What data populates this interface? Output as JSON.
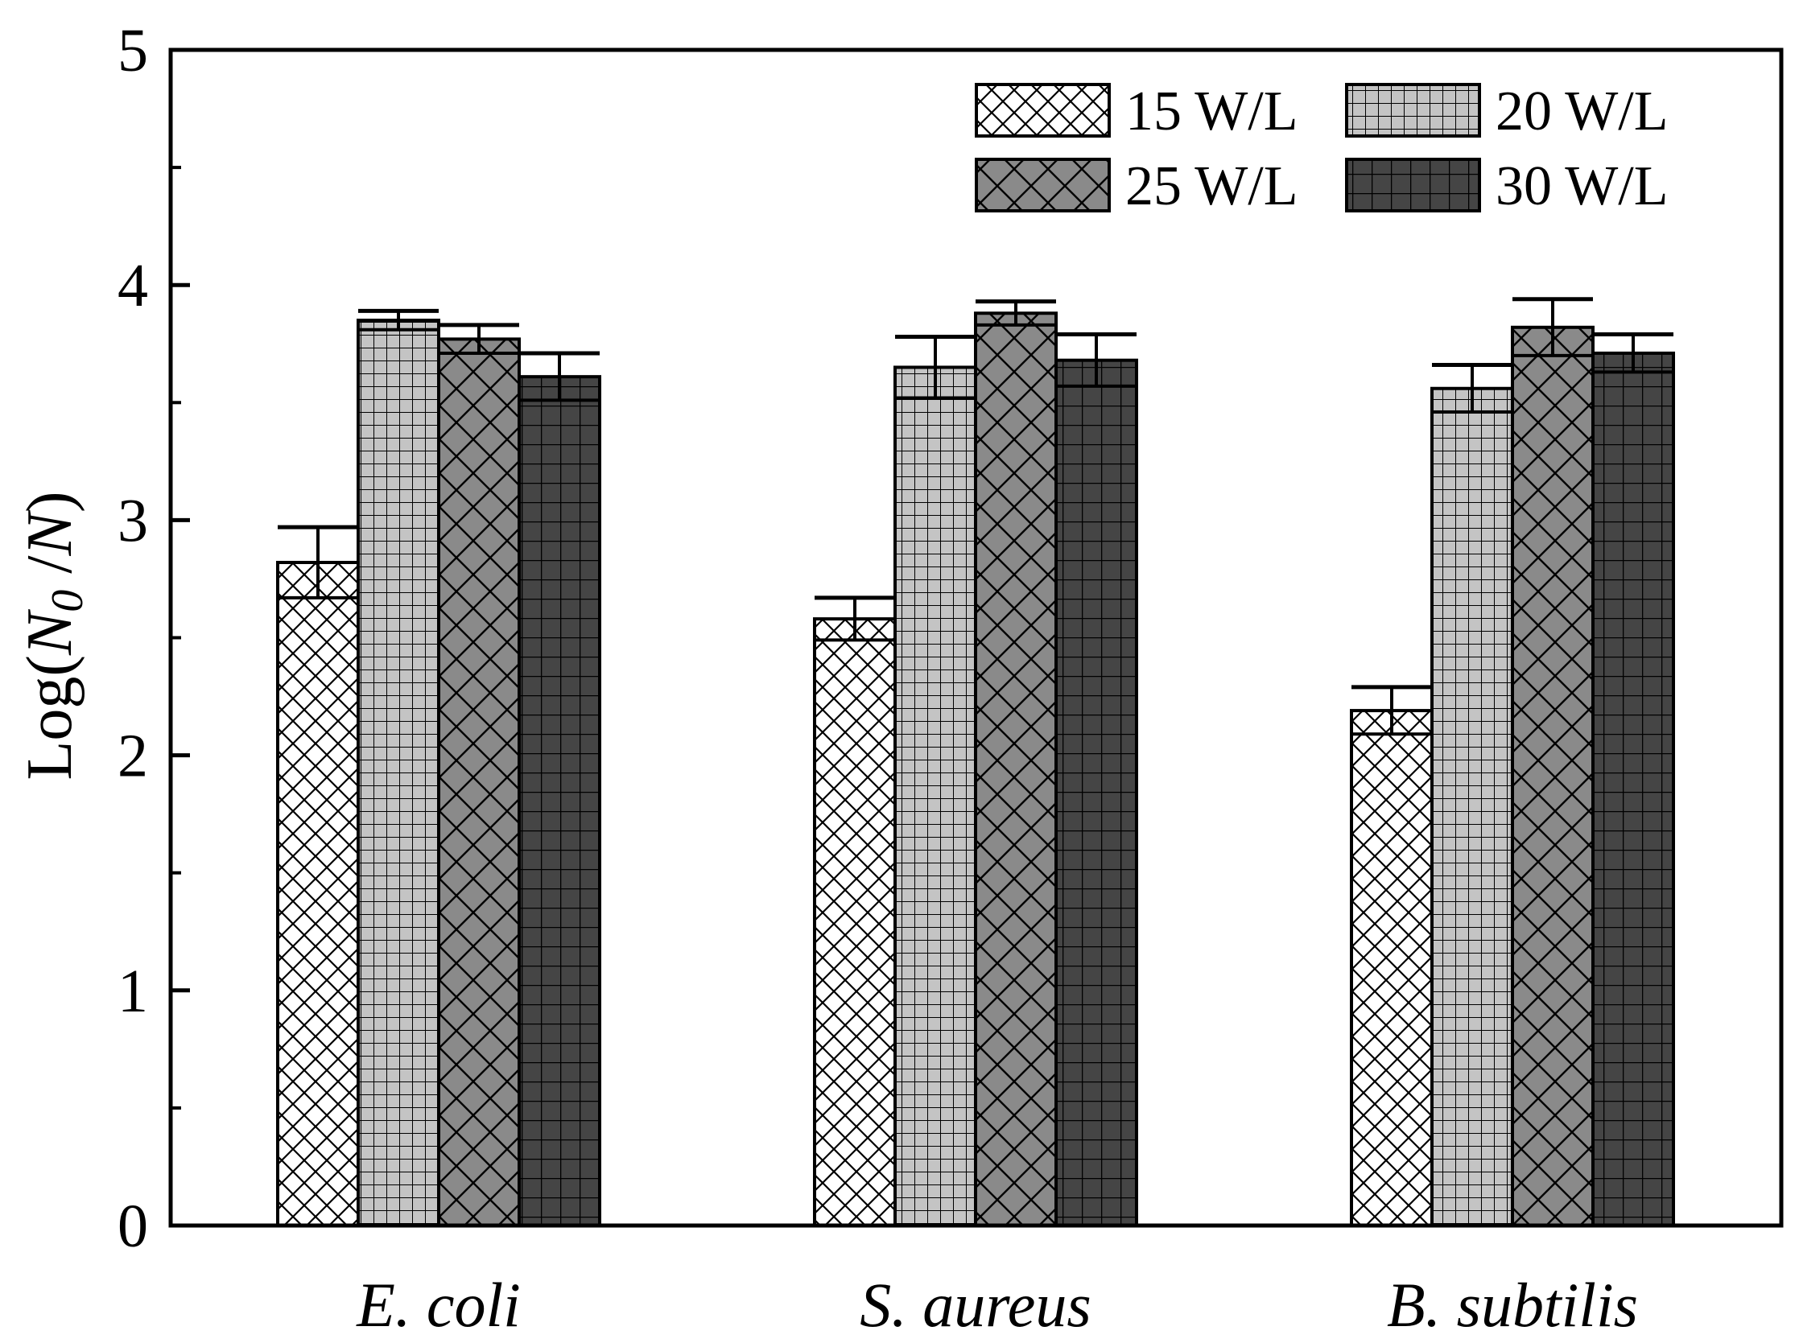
{
  "chart_data": {
    "type": "bar",
    "categories": [
      "E. coli",
      "S. aureus",
      "B. subtilis"
    ],
    "series": [
      {
        "name": "15 W/L",
        "values": [
          2.82,
          2.58,
          2.19
        ],
        "errors": [
          0.15,
          0.09,
          0.1
        ],
        "color": "#ffffff",
        "pattern": "fine-crosshatch"
      },
      {
        "name": "20 W/L",
        "values": [
          3.85,
          3.65,
          3.56
        ],
        "errors": [
          0.04,
          0.13,
          0.1
        ],
        "color": "#c4c4c4",
        "pattern": "grid"
      },
      {
        "name": "25 W/L",
        "values": [
          3.77,
          3.88,
          3.82
        ],
        "errors": [
          0.06,
          0.05,
          0.12
        ],
        "color": "#8a8a8a",
        "pattern": "crosshatch"
      },
      {
        "name": "30 W/L",
        "values": [
          3.61,
          3.68,
          3.71
        ],
        "errors": [
          0.1,
          0.11,
          0.08
        ],
        "color": "#454545",
        "pattern": "grid"
      }
    ],
    "y_ticks": [
      "0",
      "1",
      "2",
      "3",
      "4",
      "5"
    ],
    "ylabel_main": "Log(",
    "ylabel_n0": "N",
    "ylabel_n0_sub": "0",
    "ylabel_sep": " /",
    "ylabel_n": "N",
    "ylabel_close": ")",
    "ylim": [
      0,
      5
    ],
    "grid": false,
    "legend_position": "top-right"
  }
}
